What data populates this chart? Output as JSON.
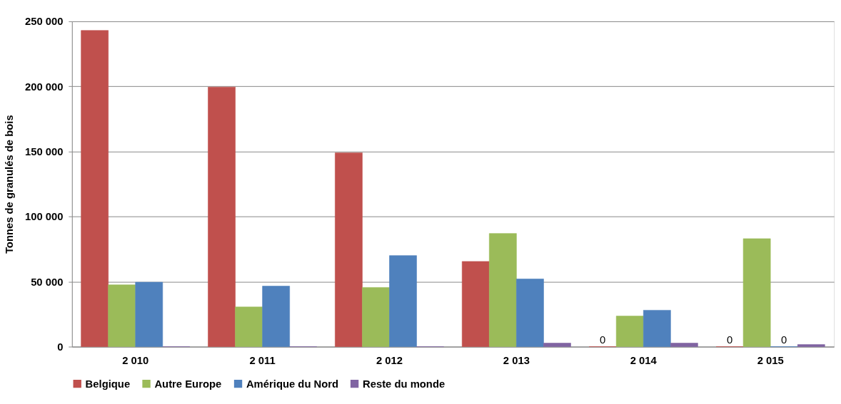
{
  "chart_data": {
    "type": "bar",
    "ylabel": "Tonnes de granulés de bois",
    "categories": [
      "2 010",
      "2 011",
      "2 012",
      "2 013",
      "2 014",
      "2 015"
    ],
    "series": [
      {
        "name": "Belgique",
        "color": "#c0504d",
        "values": [
          243000,
          199500,
          149000,
          65500,
          0,
          0
        ],
        "value_labels": [
          null,
          null,
          null,
          null,
          "0",
          "0"
        ]
      },
      {
        "name": "Autre Europe",
        "color": "#9bbb59",
        "values": [
          47500,
          30500,
          45500,
          87000,
          23500,
          83000
        ]
      },
      {
        "name": "Amérique du Nord",
        "color": "#4f81bd",
        "values": [
          49500,
          46500,
          70000,
          52000,
          28000,
          0
        ],
        "value_labels": [
          null,
          null,
          null,
          null,
          null,
          "0"
        ]
      },
      {
        "name": "Reste du monde",
        "color": "#8064a2",
        "values": [
          0,
          0,
          0,
          2700,
          2700,
          1600
        ]
      }
    ],
    "ylim": [
      0,
      250000
    ],
    "yticks": [
      {
        "value": 0,
        "label": "0"
      },
      {
        "value": 50000,
        "label": "50 000"
      },
      {
        "value": 100000,
        "label": "100 000"
      },
      {
        "value": 150000,
        "label": "150 000"
      },
      {
        "value": 200000,
        "label": "200 000"
      },
      {
        "value": 250000,
        "label": "250 000"
      }
    ],
    "grid": "y",
    "legend": "bottom"
  }
}
